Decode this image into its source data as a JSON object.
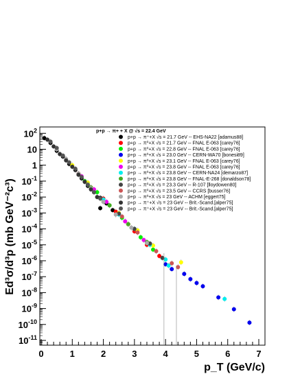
{
  "chart_data": {
    "type": "scatter",
    "title": "p+p → π+ + X @ √s = 22.4 GeV",
    "xlabel": "p_T (GeV/c)",
    "ylabel": "Ed³σ/d³p (mb GeV⁻²c³)",
    "xlim": [
      0,
      7.5
    ],
    "ylim_log10": [
      -11.3,
      2.4
    ],
    "yscale": "log",
    "x_ticks": [
      "0",
      "1",
      "2",
      "3",
      "4",
      "5",
      "6",
      "7"
    ],
    "y_ticks": [
      {
        "base": "10",
        "exp": "2"
      },
      {
        "base": "10",
        "exp": ""
      },
      {
        "base": "1",
        "exp": ""
      },
      {
        "base": "10",
        "exp": "-1"
      },
      {
        "base": "10",
        "exp": "-2"
      },
      {
        "base": "10",
        "exp": "-3"
      },
      {
        "base": "10",
        "exp": "-4"
      },
      {
        "base": "10",
        "exp": "-5"
      },
      {
        "base": "10",
        "exp": "-6"
      },
      {
        "base": "10",
        "exp": "-7"
      },
      {
        "base": "10",
        "exp": "-8"
      },
      {
        "base": "10",
        "exp": "-9"
      },
      {
        "base": "10",
        "exp": "-10"
      },
      {
        "base": "10",
        "exp": "-11"
      }
    ],
    "legend_position": "top-right",
    "series": [
      {
        "name": "p+p → π⁺+X √s = 21.7 GeV -- EHS-NA22 [adamus88]",
        "color": "#000000",
        "points": [
          [
            0.1,
            50
          ],
          [
            0.3,
            25
          ],
          [
            0.5,
            8
          ],
          [
            0.7,
            3.5
          ],
          [
            0.9,
            1.2
          ],
          [
            1.1,
            0.5
          ],
          [
            1.3,
            0.15
          ],
          [
            1.5,
            0.05
          ],
          [
            1.7,
            0.02
          ],
          [
            1.9,
            0.009
          ],
          [
            2.1,
            0.004
          ],
          [
            2.3,
            0.0015
          ],
          [
            1.9,
            0.002
          ]
        ]
      },
      {
        "name": "p+p → π⁰+X √s = 21.7 GeV -- FNAL E-063 [carey76]",
        "color": "#ff0000",
        "points": [
          [
            1.2,
            0.3
          ],
          [
            1.6,
            0.04
          ],
          [
            2.0,
            0.008
          ],
          [
            2.4,
            0.0012
          ],
          [
            2.8,
            0.0002
          ],
          [
            3.0,
            7e-05
          ],
          [
            3.4,
            1e-05
          ],
          [
            3.8,
            2e-06
          ]
        ]
      },
      {
        "name": "p+p → π⁰+X √s = 22.8 GeV -- FNAL E-063 [carey76]",
        "color": "#00ee00",
        "points": [
          [
            1.4,
            0.1
          ],
          [
            1.8,
            0.02
          ],
          [
            2.2,
            0.003
          ],
          [
            2.6,
            0.0005
          ],
          [
            3.2,
            3e-05
          ],
          [
            3.6,
            5e-06
          ]
        ]
      },
      {
        "name": "p+p → π⁰+X √s = 23.0 GeV -- CERN-WA70 [bonesi89]",
        "color": "#0000ee",
        "points": [
          [
            4.0,
            6e-07
          ],
          [
            4.2,
            3e-07
          ],
          [
            4.6,
            1.5e-07
          ],
          [
            4.8,
            7e-08
          ],
          [
            5.0,
            4e-08
          ],
          [
            5.2,
            2.5e-08
          ],
          [
            5.7,
            5e-09
          ],
          [
            6.2,
            9e-10
          ],
          [
            6.7,
            1.3e-10
          ]
        ]
      },
      {
        "name": "p+p → π⁰+X √s = 23.1 GeV -- FNAL E-063 [carey76]",
        "color": "#ffff00",
        "points": [
          [
            1.0,
            1.0
          ],
          [
            1.5,
            0.08
          ],
          [
            2.0,
            0.006
          ],
          [
            2.5,
            0.001
          ],
          [
            3.1,
            8e-05
          ],
          [
            3.6,
            9e-06
          ],
          [
            4.5,
            8e-07
          ]
        ]
      },
      {
        "name": "p+p → π⁰+X √s = 23.8 GeV -- FNAL E-063 [carey76]",
        "color": "#ee00ee",
        "points": [
          [
            1.3,
            0.2
          ],
          [
            1.7,
            0.03
          ],
          [
            2.1,
            0.005
          ],
          [
            2.7,
            0.0003
          ],
          [
            3.3,
            2e-05
          ]
        ]
      },
      {
        "name": "p+p → π⁰+X √s = 23.8 GeV -- CERN-NA24 [demarzo87]",
        "color": "#00eeee",
        "points": [
          [
            1.5,
            0.06
          ],
          [
            2.0,
            0.007
          ],
          [
            2.5,
            0.0008
          ],
          [
            3.0,
            0.0001
          ],
          [
            3.5,
            1e-05
          ],
          [
            4.0,
            1.2e-06
          ],
          [
            4.1,
            5e-07
          ],
          [
            5.9,
            4e-09
          ]
        ]
      },
      {
        "name": "p+p → π⁰+X √s = 23.8 GeV -- FNAL-E-268 [donaldson78]",
        "color": "#44aa22",
        "points": [
          [
            1.6,
            0.04
          ],
          [
            2.2,
            0.003
          ],
          [
            2.8,
            0.0002
          ],
          [
            3.4,
            1.5e-05
          ]
        ]
      },
      {
        "name": "p+p → π⁰+X √s = 23.3 GeV -- R-107 [lloydowen80]",
        "color": "#444444",
        "points": [
          [
            2.5,
            0.0009
          ],
          [
            3.0,
            0.0001
          ],
          [
            3.5,
            1.2e-05
          ],
          [
            3.9,
            1.5e-06
          ]
        ]
      },
      {
        "name": "p+p → π⁰+X √s = 23.5 GeV -- CCRS [busser76]",
        "color": "#cc5555",
        "points": [
          [
            2.6,
            0.0006
          ],
          [
            3.1,
            6e-05
          ],
          [
            3.7,
            4e-06
          ],
          [
            4.2,
            7e-07
          ],
          [
            4.4,
            4e-07
          ]
        ]
      },
      {
        "name": "p+p → π⁰+X √s = 23 GeV -- ACHM [eggert75]",
        "color": "#aaaaaa",
        "points": [
          [
            0.5,
            10
          ],
          [
            0.8,
            2.5
          ],
          [
            1.2,
            0.3
          ],
          [
            1.6,
            0.035
          ],
          [
            2.0,
            0.005
          ],
          [
            2.4,
            0.0008
          ],
          [
            2.9,
            0.00012
          ],
          [
            3.4,
            1.3e-05
          ]
        ]
      },
      {
        "name": "p+p → π⁺+X √s = 23 GeV -- Brit.-Scand.[alper75]",
        "color": "#333333",
        "points": [
          [
            0.2,
            40
          ],
          [
            0.4,
            15
          ],
          [
            0.6,
            5
          ],
          [
            0.8,
            2
          ],
          [
            1.0,
            0.8
          ],
          [
            1.2,
            0.25
          ],
          [
            1.4,
            0.09
          ],
          [
            1.6,
            0.03
          ],
          [
            1.8,
            0.01
          ]
        ]
      },
      {
        "name": "p+p → π⁺+X √s = 23 GeV -- Brit.-Scand.[alper75]",
        "color": "#555555",
        "points": [
          [
            0.3,
            30
          ],
          [
            0.5,
            12
          ],
          [
            0.7,
            4
          ],
          [
            0.9,
            1.5
          ],
          [
            1.1,
            0.6
          ],
          [
            1.3,
            0.18
          ],
          [
            1.5,
            0.06
          ],
          [
            1.7,
            0.02
          ],
          [
            1.9,
            0.008
          ]
        ]
      }
    ]
  }
}
